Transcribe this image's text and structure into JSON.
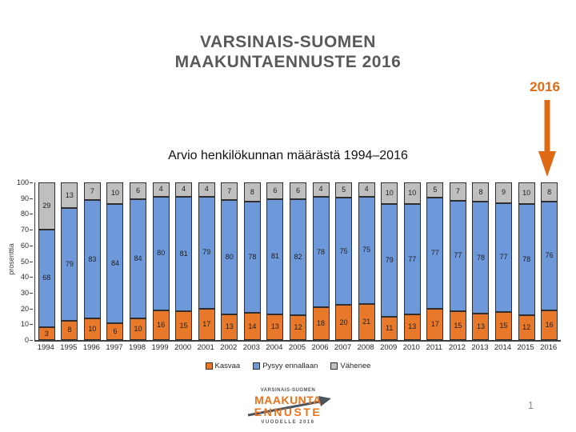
{
  "page": {
    "title_line1": "VARSINAIS-SUOMEN",
    "title_line2": "MAAKUNTAENNUSTE 2016",
    "annotation_2016": "2016",
    "page_number": "1"
  },
  "chart_data": {
    "type": "bar",
    "stacked": true,
    "percent_stacked": true,
    "title": "Arvio henkilökunnan määrästä 1994–2016",
    "xlabel": "",
    "ylabel": "prosenttia",
    "ylim": [
      0,
      100
    ],
    "yticks": [
      0,
      10,
      20,
      30,
      40,
      50,
      60,
      70,
      80,
      90,
      100
    ],
    "grid": false,
    "legend_position": "bottom",
    "categories": [
      "1994",
      "1995",
      "1996",
      "1997",
      "1998",
      "1999",
      "2000",
      "2001",
      "2002",
      "2003",
      "2004",
      "2005",
      "2006",
      "2007",
      "2008",
      "2009",
      "2010",
      "2011",
      "2012",
      "2013",
      "2014",
      "2015",
      "2016"
    ],
    "series": [
      {
        "name": "Kasvaa",
        "color": "#E8782A",
        "values": [
          3,
          8,
          10,
          6,
          10,
          16,
          15,
          17,
          13,
          14,
          13,
          12,
          18,
          20,
          21,
          11,
          13,
          17,
          15,
          13,
          15,
          12,
          16
        ]
      },
      {
        "name": "Pysyy ennallaan",
        "color": "#6D98D9",
        "values": [
          68,
          79,
          83,
          84,
          84,
          80,
          81,
          79,
          80,
          78,
          81,
          82,
          78,
          75,
          75,
          79,
          77,
          77,
          77,
          78,
          77,
          78,
          76
        ]
      },
      {
        "name": "Vähenee",
        "color": "#BFBFBF",
        "values": [
          29,
          13,
          7,
          10,
          6,
          4,
          4,
          4,
          7,
          8,
          6,
          6,
          4,
          5,
          4,
          10,
          10,
          5,
          7,
          8,
          9,
          10,
          8
        ]
      }
    ],
    "accent_color": "#DE6A15"
  },
  "logo": {
    "line1": "VARSINAIS-SUOMEN",
    "line2": "MAAKUNTA",
    "line3": "ENNUSTE",
    "line4": "VUODELLE 2016"
  }
}
